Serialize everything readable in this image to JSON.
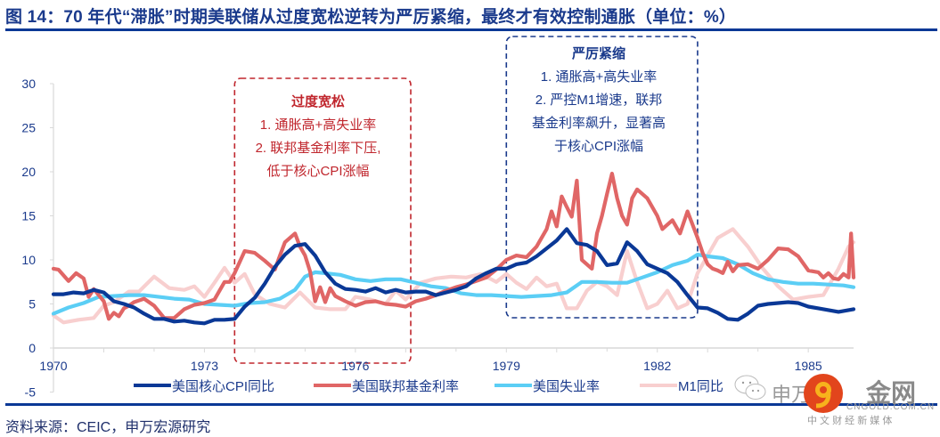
{
  "header": {
    "title": "图 14：70 年代“滞胀”时期美联储从过度宽松逆转为严厉紧缩，最终才有效控制通胀（单位：%）"
  },
  "footer": {
    "source": "资料来源：CEIC，申万宏源研究"
  },
  "annotations": {
    "loose": {
      "title": "过度宽松",
      "lines": [
        "1. 通胀高+高失业率",
        "2. 联邦基金利率下压,",
        "低于核心CPI涨幅"
      ],
      "color": "#c0262d"
    },
    "tight": {
      "title": "严厉紧缩",
      "lines": [
        "1. 通胀高+高失业率",
        "2. 严控M1增速，联邦",
        "基金利率飙升，显著高",
        "于核心CPI涨幅"
      ],
      "color": "#1a3a8c"
    }
  },
  "watermark": {
    "wechat_text": "申万",
    "brand": "金网",
    "domain": "CNGOLD.COM.CN",
    "tagline": "中 文 财 经 新 媒 体"
  },
  "chart_data": {
    "type": "line",
    "title": "70 年代“滞胀”时期美联储从过度宽松逆转为严厉紧缩，最终才有效控制通胀（单位：%）",
    "xlabel": "",
    "ylabel": "%",
    "xlim": [
      1970,
      1985.9
    ],
    "ylim": [
      -5,
      30
    ],
    "yticks": [
      -5,
      0,
      5,
      10,
      15,
      20,
      25,
      30
    ],
    "xticks": [
      "1970",
      "1973",
      "1976",
      "1979",
      "1982",
      "1985"
    ],
    "xtick_values": [
      1970,
      1973,
      1976,
      1979,
      1982,
      1985
    ],
    "grid": false,
    "legend_position": "bottom",
    "shaded_periods": [
      {
        "name": "过度宽松",
        "from": 1973.6,
        "to": 1977.1,
        "color": "#c0262d"
      },
      {
        "name": "严厉紧缩",
        "from": 1979.0,
        "to": 1982.8,
        "color": "#1a3a8c"
      }
    ],
    "series": [
      {
        "name": "美国核心CPI同比",
        "color": "#0a3896",
        "x": [
          1970.0,
          1970.2,
          1970.4,
          1970.6,
          1970.8,
          1971.0,
          1971.2,
          1971.4,
          1971.6,
          1971.8,
          1972.0,
          1972.2,
          1972.4,
          1972.6,
          1972.8,
          1973.0,
          1973.2,
          1973.4,
          1973.6,
          1973.8,
          1974.0,
          1974.2,
          1974.4,
          1974.6,
          1974.8,
          1975.0,
          1975.2,
          1975.4,
          1975.6,
          1975.8,
          1976.0,
          1976.2,
          1976.4,
          1976.6,
          1976.8,
          1977.0,
          1977.2,
          1977.4,
          1977.6,
          1977.8,
          1978.0,
          1978.2,
          1978.4,
          1978.6,
          1978.8,
          1979.0,
          1979.2,
          1979.4,
          1979.6,
          1979.8,
          1980.0,
          1980.2,
          1980.4,
          1980.6,
          1980.8,
          1981.0,
          1981.2,
          1981.4,
          1981.6,
          1981.8,
          1982.0,
          1982.2,
          1982.4,
          1982.6,
          1982.8,
          1983.0,
          1983.2,
          1983.4,
          1983.6,
          1983.8,
          1984.0,
          1984.2,
          1984.4,
          1984.6,
          1984.8,
          1985.0,
          1985.2,
          1985.4,
          1985.6,
          1985.9
        ],
        "values": [
          6.1,
          6.1,
          6.3,
          6.2,
          6.6,
          6.3,
          5.3,
          5.0,
          4.6,
          3.9,
          3.3,
          3.3,
          3.0,
          3.1,
          2.9,
          2.8,
          3.2,
          3.2,
          3.3,
          4.7,
          5.7,
          7.3,
          9.2,
          10.6,
          11.6,
          11.8,
          10.5,
          8.6,
          7.3,
          6.7,
          6.6,
          6.4,
          6.8,
          6.3,
          6.6,
          6.3,
          6.4,
          6.4,
          6.0,
          6.3,
          6.6,
          7.0,
          7.9,
          8.5,
          9.0,
          9.0,
          9.5,
          9.7,
          10.4,
          11.3,
          12.2,
          13.5,
          11.9,
          11.7,
          11.0,
          9.4,
          9.6,
          12.0,
          11.0,
          9.5,
          9.0,
          8.5,
          7.5,
          6.0,
          4.6,
          4.5,
          4.0,
          3.3,
          3.2,
          3.9,
          4.8,
          5.0,
          5.1,
          5.2,
          5.1,
          4.7,
          4.5,
          4.3,
          4.1,
          4.4
        ]
      },
      {
        "name": "美国联邦基金利率",
        "color": "#e06666",
        "x": [
          1970.0,
          1970.1,
          1970.3,
          1970.45,
          1970.6,
          1970.7,
          1970.8,
          1971.0,
          1971.1,
          1971.2,
          1971.3,
          1971.4,
          1971.5,
          1971.6,
          1971.8,
          1972.0,
          1972.2,
          1972.4,
          1972.6,
          1972.8,
          1973.0,
          1973.2,
          1973.4,
          1973.5,
          1973.6,
          1973.8,
          1974.0,
          1974.2,
          1974.4,
          1974.5,
          1974.6,
          1974.8,
          1974.9,
          1975.0,
          1975.1,
          1975.2,
          1975.3,
          1975.4,
          1975.5,
          1975.6,
          1975.8,
          1976.0,
          1976.2,
          1976.4,
          1976.6,
          1976.8,
          1977.0,
          1977.2,
          1977.4,
          1977.6,
          1977.8,
          1978.0,
          1978.2,
          1978.4,
          1978.6,
          1978.8,
          1979.0,
          1979.2,
          1979.4,
          1979.6,
          1979.8,
          1979.9,
          1980.0,
          1980.1,
          1980.2,
          1980.3,
          1980.4,
          1980.5,
          1980.7,
          1980.8,
          1980.9,
          1981.0,
          1981.1,
          1981.2,
          1981.3,
          1981.4,
          1981.5,
          1981.6,
          1981.8,
          1982.0,
          1982.1,
          1982.2,
          1982.3,
          1982.45,
          1982.6,
          1982.7,
          1982.8,
          1982.9,
          1983.0,
          1983.1,
          1983.2,
          1983.3,
          1983.4,
          1983.5,
          1983.6,
          1983.8,
          1984.0,
          1984.2,
          1984.4,
          1984.6,
          1984.8,
          1985.0,
          1985.2,
          1985.3,
          1985.4,
          1985.5,
          1985.6,
          1985.7,
          1985.8,
          1985.85,
          1985.9
        ],
        "values": [
          9.0,
          8.9,
          7.6,
          8.5,
          7.9,
          5.8,
          6.7,
          5.3,
          3.3,
          4.0,
          3.6,
          4.5,
          4.8,
          5.2,
          5.6,
          4.8,
          3.4,
          3.4,
          4.4,
          4.9,
          5.1,
          5.5,
          7.5,
          7.5,
          8.5,
          11.0,
          10.8,
          9.9,
          8.9,
          10.5,
          12.0,
          13.0,
          11.5,
          10.5,
          8.7,
          5.3,
          6.9,
          5.2,
          6.8,
          5.9,
          5.3,
          4.8,
          5.2,
          5.3,
          5.0,
          4.9,
          4.7,
          5.3,
          5.6,
          6.0,
          6.5,
          6.9,
          7.2,
          7.6,
          8.0,
          8.9,
          10.0,
          10.5,
          10.3,
          11.5,
          13.5,
          15.5,
          13.8,
          17.2,
          16.0,
          14.9,
          19.0,
          10.0,
          9.0,
          13.0,
          15.0,
          17.5,
          19.8,
          17.0,
          15.0,
          14.0,
          17.0,
          18.0,
          17.0,
          15.0,
          13.5,
          14.0,
          14.5,
          13.0,
          15.5,
          14.0,
          12.5,
          10.8,
          9.5,
          9.0,
          8.8,
          8.5,
          9.8,
          8.7,
          9.4,
          9.5,
          9.0,
          10.0,
          11.3,
          11.2,
          10.4,
          8.8,
          8.6,
          8.0,
          8.5,
          7.9,
          7.8,
          8.4,
          8.0,
          13.0,
          8.0
        ]
      },
      {
        "name": "美国失业率",
        "color": "#5bcef5",
        "x": [
          1970.0,
          1970.3,
          1970.6,
          1970.9,
          1971.2,
          1971.5,
          1971.8,
          1972.1,
          1972.4,
          1972.7,
          1973.0,
          1973.3,
          1973.6,
          1973.9,
          1974.2,
          1974.5,
          1974.8,
          1975.0,
          1975.2,
          1975.4,
          1975.7,
          1976.0,
          1976.3,
          1976.6,
          1976.9,
          1977.2,
          1977.5,
          1977.8,
          1978.1,
          1978.4,
          1978.7,
          1979.0,
          1979.3,
          1979.6,
          1979.9,
          1980.2,
          1980.5,
          1980.8,
          1981.1,
          1981.4,
          1981.7,
          1982.0,
          1982.3,
          1982.6,
          1982.8,
          1983.0,
          1983.3,
          1983.6,
          1983.9,
          1984.2,
          1984.5,
          1984.8,
          1985.1,
          1985.4,
          1985.7,
          1985.9
        ],
        "values": [
          3.9,
          4.6,
          5.1,
          5.8,
          5.9,
          6.0,
          6.0,
          5.8,
          5.6,
          5.5,
          5.0,
          4.9,
          4.8,
          5.1,
          5.2,
          5.6,
          6.6,
          8.1,
          8.6,
          8.5,
          8.3,
          7.8,
          7.6,
          7.8,
          7.8,
          7.4,
          7.0,
          6.8,
          6.2,
          6.0,
          6.0,
          5.9,
          5.8,
          5.9,
          6.0,
          6.3,
          7.5,
          7.5,
          7.4,
          7.4,
          8.0,
          8.6,
          9.4,
          9.9,
          10.6,
          10.4,
          10.2,
          9.5,
          8.5,
          7.8,
          7.5,
          7.3,
          7.3,
          7.2,
          7.1,
          6.9
        ]
      },
      {
        "name": "M1同比",
        "color": "#f8cfcf",
        "x": [
          1970.0,
          1970.2,
          1970.5,
          1970.8,
          1971.0,
          1971.2,
          1971.5,
          1971.7,
          1972.0,
          1972.3,
          1972.6,
          1972.8,
          1973.0,
          1973.2,
          1973.4,
          1973.6,
          1973.8,
          1974.0,
          1974.3,
          1974.6,
          1974.9,
          1975.2,
          1975.5,
          1975.8,
          1976.0,
          1976.3,
          1976.6,
          1976.8,
          1977.0,
          1977.3,
          1977.6,
          1977.9,
          1978.2,
          1978.5,
          1978.8,
          1979.0,
          1979.2,
          1979.4,
          1979.6,
          1979.8,
          1980.0,
          1980.2,
          1980.4,
          1980.6,
          1980.8,
          1981.0,
          1981.2,
          1981.4,
          1981.6,
          1981.8,
          1982.0,
          1982.2,
          1982.4,
          1982.6,
          1982.8,
          1983.0,
          1983.2,
          1983.5,
          1983.8,
          1984.1,
          1984.4,
          1984.7,
          1985.0,
          1985.3,
          1985.6,
          1985.8,
          1985.9
        ],
        "values": [
          3.7,
          2.9,
          3.2,
          3.4,
          4.8,
          5.2,
          6.4,
          6.4,
          8.1,
          6.8,
          6.6,
          7.0,
          5.8,
          7.4,
          9.1,
          7.4,
          8.4,
          6.1,
          5.0,
          4.6,
          6.3,
          4.6,
          4.4,
          4.4,
          5.8,
          5.5,
          5.0,
          6.5,
          5.5,
          7.4,
          7.9,
          8.1,
          8.0,
          8.4,
          7.5,
          8.4,
          7.4,
          6.7,
          8.0,
          7.0,
          7.3,
          4.5,
          4.5,
          6.5,
          7.5,
          7.0,
          6.0,
          11.0,
          7.5,
          4.5,
          5.0,
          6.5,
          4.5,
          5.0,
          8.5,
          10.5,
          12.5,
          13.5,
          11.5,
          9.0,
          7.0,
          5.5,
          5.8,
          6.0,
          9.0,
          11.5,
          12.0
        ]
      }
    ]
  }
}
